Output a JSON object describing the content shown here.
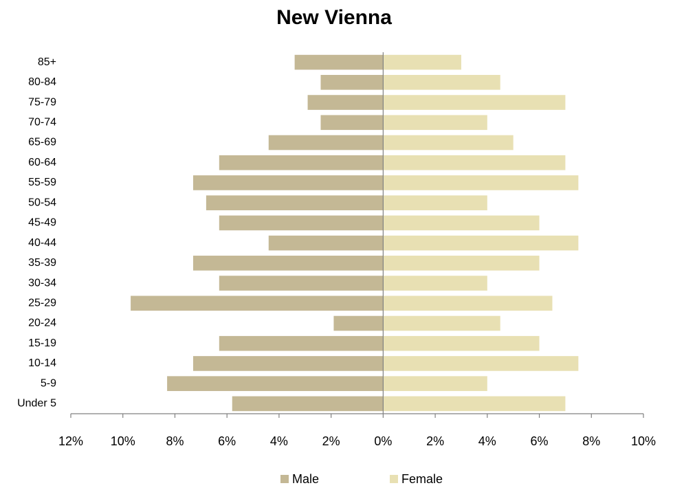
{
  "chart_data": {
    "type": "pyramid",
    "title": "New Vienna",
    "categories": [
      "Under 5",
      "5-9",
      "10-14",
      "15-19",
      "20-24",
      "25-29",
      "30-34",
      "35-39",
      "40-44",
      "45-49",
      "50-54",
      "55-59",
      "60-64",
      "65-69",
      "70-74",
      "75-79",
      "80-84",
      "85+"
    ],
    "series": [
      {
        "name": "Male",
        "color": "#c4b895",
        "values": [
          -5.8,
          -8.3,
          -7.3,
          -6.3,
          -1.9,
          -9.7,
          -6.3,
          -7.3,
          -4.4,
          -6.3,
          -6.8,
          -7.3,
          -6.3,
          -4.4,
          -2.4,
          -2.9,
          -2.4,
          -3.4
        ]
      },
      {
        "name": "Female",
        "color": "#e8e0b3",
        "values": [
          7.0,
          4.0,
          7.5,
          6.0,
          4.5,
          6.5,
          4.0,
          6.0,
          7.5,
          6.0,
          4.0,
          7.5,
          7.0,
          5.0,
          4.0,
          7.0,
          4.5,
          3.0
        ]
      }
    ],
    "xlim": [
      -12,
      10
    ],
    "xticks": [
      {
        "value": -12,
        "label": "12%"
      },
      {
        "value": -10,
        "label": "10%"
      },
      {
        "value": -8,
        "label": "8%"
      },
      {
        "value": -6,
        "label": "6%"
      },
      {
        "value": -4,
        "label": "4%"
      },
      {
        "value": -2,
        "label": "2%"
      },
      {
        "value": 0,
        "label": "0%"
      },
      {
        "value": 2,
        "label": "2%"
      },
      {
        "value": 4,
        "label": "4%"
      },
      {
        "value": 6,
        "label": "6%"
      },
      {
        "value": 8,
        "label": "8%"
      },
      {
        "value": 10,
        "label": "10%"
      }
    ],
    "grid": false,
    "legend": "bottom"
  }
}
